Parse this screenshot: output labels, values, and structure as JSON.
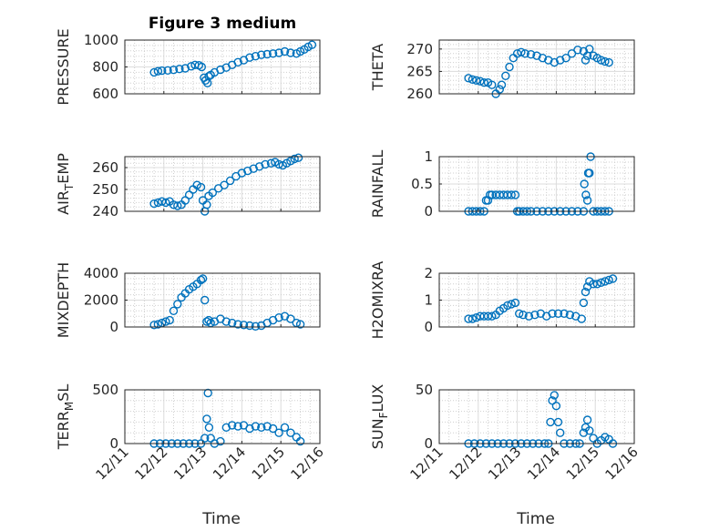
{
  "figure_title": "Figure 3 medium",
  "x_axis_label": "Time",
  "marker_color": "#0072BD",
  "chart_data": [
    {
      "type": "scatter",
      "title": "Figure 3 medium",
      "ylabel": "PRESSURE",
      "xlabel": "",
      "xlim": [
        0,
        5
      ],
      "ylim": [
        600,
        1000
      ],
      "yticks": [
        600,
        800,
        1000
      ],
      "ytick_labels": [
        "600",
        "800",
        "1000"
      ],
      "xtick_labels": [],
      "grid": true,
      "x": [
        0.75,
        0.85,
        0.95,
        1.1,
        1.25,
        1.4,
        1.55,
        1.7,
        1.8,
        1.9,
        1.97,
        2.03,
        2.07,
        2.12,
        2.15,
        2.2,
        2.3,
        2.45,
        2.6,
        2.75,
        2.9,
        3.05,
        3.2,
        3.35,
        3.5,
        3.65,
        3.8,
        3.95,
        4.1,
        4.25,
        4.4,
        4.5,
        4.6,
        4.7,
        4.8
      ],
      "y": [
        760,
        768,
        772,
        774,
        778,
        785,
        790,
        805,
        815,
        812,
        800,
        720,
        700,
        680,
        730,
        740,
        760,
        780,
        795,
        815,
        835,
        850,
        870,
        880,
        890,
        895,
        900,
        905,
        915,
        905,
        900,
        915,
        930,
        950,
        965
      ]
    },
    {
      "type": "scatter",
      "title": "",
      "ylabel": "THETA",
      "xlabel": "",
      "xlim": [
        0,
        5
      ],
      "ylim": [
        260,
        272
      ],
      "yticks": [
        260,
        265,
        270
      ],
      "ytick_labels": [
        "260",
        "265",
        "270"
      ],
      "xtick_labels": [],
      "grid": true,
      "x": [
        0.75,
        0.85,
        0.95,
        1.05,
        1.15,
        1.25,
        1.35,
        1.45,
        1.55,
        1.6,
        1.7,
        1.8,
        1.9,
        2.0,
        2.1,
        2.2,
        2.35,
        2.5,
        2.65,
        2.8,
        2.95,
        3.1,
        3.25,
        3.4,
        3.55,
        3.7,
        3.75,
        3.8,
        3.85,
        3.95,
        4.05,
        4.15,
        4.25,
        4.35
      ],
      "y": [
        263.5,
        263.2,
        263,
        262.8,
        262.5,
        262.5,
        262,
        260,
        261,
        262,
        264,
        266,
        268,
        269,
        269.3,
        269,
        268.8,
        268.5,
        268,
        267.5,
        267,
        267.5,
        268,
        269,
        269.8,
        269.5,
        267.5,
        268.5,
        270,
        268.5,
        268,
        267.5,
        267.2,
        267
      ]
    },
    {
      "type": "scatter",
      "title": "",
      "ylabel": "AIR_TEMP",
      "xlabel": "",
      "xlim": [
        0,
        5
      ],
      "ylim": [
        240,
        265
      ],
      "yticks": [
        240,
        250,
        260
      ],
      "ytick_labels": [
        "240",
        "250",
        "260"
      ],
      "xtick_labels": [],
      "grid": true,
      "x": [
        0.75,
        0.85,
        0.95,
        1.05,
        1.15,
        1.25,
        1.35,
        1.45,
        1.55,
        1.65,
        1.75,
        1.85,
        1.95,
        2.0,
        2.05,
        2.1,
        2.15,
        2.25,
        2.4,
        2.55,
        2.7,
        2.85,
        3.0,
        3.15,
        3.3,
        3.45,
        3.6,
        3.75,
        3.85,
        3.95,
        4.05,
        4.15,
        4.25,
        4.35,
        4.45
      ],
      "y": [
        243.5,
        244,
        244.5,
        244,
        244.5,
        243,
        242.5,
        243,
        245,
        247.5,
        250,
        252,
        251,
        245,
        240,
        243,
        247,
        248.5,
        250.5,
        252,
        254,
        256,
        257.5,
        258.5,
        259.5,
        260.5,
        261.5,
        262,
        262.5,
        261.5,
        261,
        262,
        263,
        264,
        264.5
      ]
    },
    {
      "type": "scatter",
      "title": "",
      "ylabel": "RAINFALL",
      "xlabel": "",
      "xlim": [
        0,
        5
      ],
      "ylim": [
        0,
        1
      ],
      "yticks": [
        0,
        0.5,
        1
      ],
      "ytick_labels": [
        "0",
        "0.5",
        "1"
      ],
      "xtick_labels": [],
      "grid": true,
      "x": [
        0.75,
        0.85,
        0.95,
        1.05,
        1.15,
        1.2,
        1.25,
        1.3,
        1.35,
        1.45,
        1.55,
        1.65,
        1.75,
        1.85,
        1.95,
        2.0,
        2.05,
        2.15,
        2.25,
        2.35,
        2.5,
        2.65,
        2.8,
        2.95,
        3.1,
        3.25,
        3.4,
        3.55,
        3.7,
        3.72,
        3.76,
        3.8,
        3.82,
        3.85,
        3.88,
        3.95,
        4.05,
        4.15,
        4.25,
        4.35
      ],
      "y": [
        0,
        0,
        0,
        0,
        0,
        0.2,
        0.2,
        0.3,
        0.3,
        0.3,
        0.3,
        0.3,
        0.3,
        0.3,
        0.3,
        0,
        0,
        0,
        0,
        0,
        0,
        0,
        0,
        0,
        0,
        0,
        0,
        0,
        0,
        0.5,
        0.3,
        0.2,
        0.7,
        0.7,
        1.0,
        0,
        0,
        0,
        0,
        0
      ]
    },
    {
      "type": "scatter",
      "title": "",
      "ylabel": "MIXDEPTH",
      "xlabel": "",
      "xlim": [
        0,
        5
      ],
      "ylim": [
        0,
        4000
      ],
      "yticks": [
        0,
        2000,
        4000
      ],
      "ytick_labels": [
        "0",
        "2000",
        "4000"
      ],
      "xtick_labels": [],
      "grid": true,
      "x": [
        0.75,
        0.85,
        0.95,
        1.05,
        1.15,
        1.25,
        1.35,
        1.45,
        1.55,
        1.65,
        1.75,
        1.85,
        1.95,
        2.0,
        2.05,
        2.1,
        2.15,
        2.2,
        2.3,
        2.45,
        2.6,
        2.75,
        2.9,
        3.05,
        3.2,
        3.35,
        3.5,
        3.65,
        3.8,
        3.95,
        4.1,
        4.25,
        4.4,
        4.5
      ],
      "y": [
        150,
        200,
        300,
        400,
        500,
        1200,
        1700,
        2200,
        2500,
        2800,
        3000,
        3200,
        3500,
        3600,
        2000,
        400,
        500,
        300,
        400,
        600,
        400,
        300,
        200,
        150,
        100,
        50,
        100,
        300,
        500,
        700,
        800,
        600,
        300,
        200
      ]
    },
    {
      "type": "scatter",
      "title": "",
      "ylabel": "H2OMIXRA",
      "xlabel": "",
      "xlim": [
        0,
        5
      ],
      "ylim": [
        0,
        2
      ],
      "yticks": [
        0,
        1,
        2
      ],
      "ytick_labels": [
        "0",
        "1",
        "2"
      ],
      "xtick_labels": [],
      "grid": true,
      "x": [
        0.75,
        0.85,
        0.95,
        1.05,
        1.15,
        1.25,
        1.35,
        1.45,
        1.55,
        1.65,
        1.75,
        1.85,
        1.95,
        2.05,
        2.15,
        2.3,
        2.45,
        2.6,
        2.75,
        2.9,
        3.05,
        3.2,
        3.35,
        3.5,
        3.65,
        3.7,
        3.75,
        3.8,
        3.85,
        3.95,
        4.05,
        4.15,
        4.25,
        4.35,
        4.45
      ],
      "y": [
        0.3,
        0.3,
        0.35,
        0.4,
        0.4,
        0.4,
        0.4,
        0.45,
        0.6,
        0.7,
        0.8,
        0.85,
        0.9,
        0.5,
        0.45,
        0.4,
        0.45,
        0.5,
        0.4,
        0.5,
        0.5,
        0.5,
        0.45,
        0.4,
        0.3,
        0.9,
        1.3,
        1.5,
        1.7,
        1.6,
        1.6,
        1.65,
        1.7,
        1.75,
        1.8
      ]
    },
    {
      "type": "scatter",
      "title": "",
      "ylabel": "TERR_MSL",
      "xlabel": "",
      "xlim": [
        0,
        5
      ],
      "ylim": [
        0,
        500
      ],
      "yticks": [
        0,
        500
      ],
      "ytick_labels": [
        "0",
        "500"
      ],
      "xtick_labels": [
        "12/11",
        "12/12",
        "12/13",
        "12/14",
        "12/15",
        "12/16"
      ],
      "grid": true,
      "x": [
        0.75,
        0.9,
        1.05,
        1.2,
        1.35,
        1.5,
        1.65,
        1.8,
        1.95,
        2.05,
        2.1,
        2.13,
        2.16,
        2.2,
        2.3,
        2.45,
        2.6,
        2.75,
        2.9,
        3.05,
        3.2,
        3.35,
        3.5,
        3.65,
        3.8,
        3.95,
        4.1,
        4.25,
        4.4,
        4.5
      ],
      "y": [
        0,
        0,
        0,
        0,
        0,
        0,
        0,
        0,
        0,
        50,
        230,
        470,
        150,
        50,
        0,
        20,
        150,
        170,
        160,
        170,
        140,
        160,
        150,
        160,
        140,
        100,
        150,
        100,
        60,
        20
      ]
    },
    {
      "type": "scatter",
      "title": "",
      "ylabel": "SUN_FLUX",
      "xlabel": "",
      "xlim": [
        0,
        5
      ],
      "ylim": [
        0,
        50
      ],
      "yticks": [
        0,
        50
      ],
      "ytick_labels": [
        "0",
        "50"
      ],
      "xtick_labels": [
        "12/11",
        "12/12",
        "12/13",
        "12/14",
        "12/15",
        "12/16"
      ],
      "grid": true,
      "x": [
        0.75,
        0.9,
        1.05,
        1.2,
        1.35,
        1.5,
        1.65,
        1.8,
        1.95,
        2.1,
        2.25,
        2.4,
        2.55,
        2.7,
        2.8,
        2.85,
        2.9,
        2.95,
        3.0,
        3.05,
        3.1,
        3.2,
        3.35,
        3.5,
        3.6,
        3.7,
        3.75,
        3.8,
        3.85,
        3.95,
        4.05,
        4.15,
        4.25,
        4.35,
        4.45
      ],
      "y": [
        0,
        0,
        0,
        0,
        0,
        0,
        0,
        0,
        0,
        0,
        0,
        0,
        0,
        0,
        0,
        20,
        40,
        45,
        35,
        20,
        10,
        0,
        0,
        0,
        0,
        10,
        15,
        22,
        12,
        5,
        0,
        3,
        6,
        4,
        0
      ]
    }
  ]
}
